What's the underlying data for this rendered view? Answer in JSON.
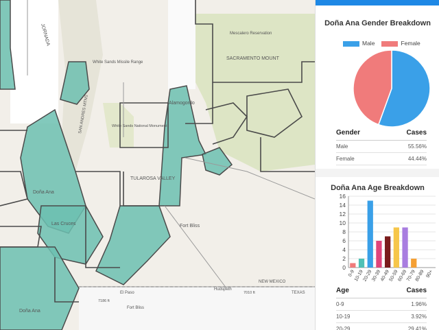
{
  "map": {
    "labels": {
      "jornada": "JORNADA",
      "white_sands_range": "White Sands Missile Range",
      "mescalero": "Mescalero Reservation",
      "sacramento": "SACRAMENTO MOUNT",
      "alamogordo": "Alamogordo",
      "white_sands_monument": "White Sands National Monument",
      "tularosa": "TULAROSA VALLEY",
      "dona_ana_town": "Doña Ana",
      "las_cruces": "Las Cruces",
      "fort_bliss_1": "Fort Bliss",
      "fort_bliss_2": "Fort Bliss",
      "el_paso": "El Paso",
      "hudspeth": "Hudspeth",
      "dona_ana_county": "Doña Ana",
      "new_mexico": "NEW MEXICO",
      "texas": "TEXAS",
      "elev_1": "7186 ft",
      "elev_2": "7010 ft",
      "andres": "SAN ANDRES MTNS"
    },
    "colors": {
      "highlight": "#6cc0b0",
      "base": "#f2efe9",
      "green": "#dde5c5",
      "border": "#4a4a4a"
    }
  },
  "gender_card": {
    "title": "Doña Ana Gender Breakdown",
    "legend": [
      {
        "label": "Male",
        "color": "#3aa0e8"
      },
      {
        "label": "Female",
        "color": "#f07b7b"
      }
    ],
    "table": {
      "headers": [
        "Gender",
        "Cases"
      ],
      "rows": [
        [
          "Male",
          "55.56%"
        ],
        [
          "Female",
          "44.44%"
        ]
      ]
    }
  },
  "age_card": {
    "title": "Doña Ana Age Breakdown",
    "table": {
      "headers": [
        "Age",
        "Cases"
      ],
      "rows": [
        [
          "0-9",
          "1.96%"
        ],
        [
          "10-19",
          "3.92%"
        ],
        [
          "20-29",
          "29.41%"
        ]
      ]
    }
  },
  "chart_data": [
    {
      "type": "pie",
      "categories": [
        "Male",
        "Female"
      ],
      "values": [
        55.56,
        44.44
      ],
      "colors": [
        "#3aa0e8",
        "#f07b7b"
      ],
      "title": "Doña Ana Gender Breakdown"
    },
    {
      "type": "bar",
      "title": "Doña Ana Age Breakdown",
      "categories": [
        "0-9",
        "10-19",
        "20-29",
        "30-39",
        "40-49",
        "50-59",
        "60-69",
        "70-79",
        "80-89",
        "90+"
      ],
      "values": [
        1,
        2,
        15,
        6,
        7,
        9,
        9,
        2,
        0,
        0
      ],
      "colors": [
        "#f07b7b",
        "#4fc0b5",
        "#3aa0e8",
        "#e0457b",
        "#7a1c1c",
        "#f6c64a",
        "#a87de0",
        "#f5a034",
        "#9ccc65",
        "#7e57c2"
      ],
      "ylim": [
        0,
        16
      ],
      "yticks": [
        0,
        2,
        4,
        6,
        8,
        10,
        12,
        14,
        16
      ],
      "grid": true
    }
  ]
}
